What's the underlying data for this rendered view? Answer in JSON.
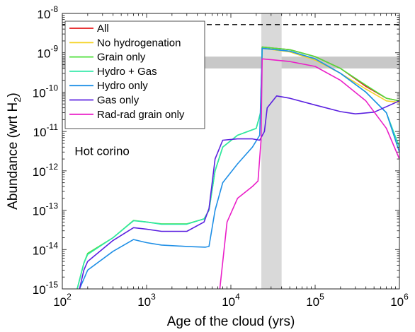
{
  "chart_data": {
    "type": "line",
    "title": "",
    "xlabel": "Age of the cloud (yrs)",
    "ylabel": {
      "main": "Abundance (wrt H",
      "sub": "2",
      "close": ")"
    },
    "xscale": "log",
    "yscale": "log",
    "xlim": [
      100,
      1000000
    ],
    "ylim": [
      1e-15,
      1e-08
    ],
    "grid": false,
    "legend_position": "top-left",
    "xticks": [
      {
        "value": 100,
        "base": "10",
        "exp": "2"
      },
      {
        "value": 1000,
        "base": "10",
        "exp": "3"
      },
      {
        "value": 10000,
        "base": "10",
        "exp": "4"
      },
      {
        "value": 100000,
        "base": "10",
        "exp": "5"
      },
      {
        "value": 1000000,
        "base": "10",
        "exp": "6"
      }
    ],
    "yticks": [
      {
        "value": 1e-15,
        "base": "10",
        "exp": "-15"
      },
      {
        "value": 1e-14,
        "base": "10",
        "exp": "-14"
      },
      {
        "value": 1e-13,
        "base": "10",
        "exp": "-13"
      },
      {
        "value": 1e-12,
        "base": "10",
        "exp": "-12"
      },
      {
        "value": 1e-11,
        "base": "10",
        "exp": "-11"
      },
      {
        "value": 1e-10,
        "base": "10",
        "exp": "-10"
      },
      {
        "value": 1e-09,
        "base": "10",
        "exp": "-9"
      },
      {
        "value": 1e-08,
        "base": "10",
        "exp": "-8"
      }
    ],
    "annotations": [
      {
        "text": "Hot corino",
        "x": 140,
        "y": 2.5e-12
      }
    ],
    "reference_line": {
      "y": 5.2e-09,
      "style": "dashed",
      "color": "#000000"
    },
    "shaded_regions": [
      {
        "orientation": "horizontal",
        "from": 4e-10,
        "to": 8e-10,
        "color": "#c8c8c8"
      },
      {
        "orientation": "vertical",
        "from": 23000,
        "to": 40000,
        "color": "#d9d9d9"
      }
    ],
    "series": [
      {
        "name": "All",
        "color": "#e41a1c",
        "points": [
          [
            22800,
            3e-11
          ],
          [
            23500,
            1.4e-09
          ],
          [
            50000,
            1.2e-09
          ],
          [
            100000,
            8e-10
          ],
          [
            200000,
            4e-10
          ],
          [
            400000,
            1.4e-10
          ],
          [
            700000,
            7e-11
          ],
          [
            1000000,
            6e-11
          ]
        ]
      },
      {
        "name": "No hydrogenation",
        "color": "#f5d327",
        "points": [
          [
            22800,
            3e-11
          ],
          [
            23500,
            1.3e-09
          ],
          [
            50000,
            1.05e-09
          ],
          [
            100000,
            6.5e-10
          ],
          [
            200000,
            3e-10
          ],
          [
            400000,
            1.2e-10
          ],
          [
            700000,
            6e-11
          ],
          [
            1000000,
            5.5e-11
          ]
        ]
      },
      {
        "name": "Grain only",
        "color": "#4fe03a",
        "points": [
          [
            150,
            1e-15
          ],
          [
            180,
            4.5e-15
          ],
          [
            200,
            8e-15
          ],
          [
            400,
            2e-14
          ],
          [
            700,
            5.5e-14
          ],
          [
            1000,
            5e-14
          ],
          [
            1500,
            4.5e-14
          ],
          [
            3000,
            4.5e-14
          ],
          [
            4800,
            6e-14
          ],
          [
            5500,
            1e-13
          ],
          [
            6500,
            1e-12
          ],
          [
            8000,
            4e-12
          ],
          [
            12000,
            8e-12
          ],
          [
            20000,
            1.2e-11
          ],
          [
            22500,
            3e-11
          ],
          [
            23500,
            1.4e-09
          ],
          [
            50000,
            1.2e-09
          ],
          [
            100000,
            8e-10
          ],
          [
            200000,
            4e-10
          ],
          [
            400000,
            1.5e-10
          ],
          [
            700000,
            7e-11
          ],
          [
            1000000,
            6e-11
          ]
        ]
      },
      {
        "name": "Hydro + Gas",
        "color": "#2ee8a6",
        "points": [
          [
            150,
            1e-15
          ],
          [
            180,
            4.5e-15
          ],
          [
            200,
            7.5e-15
          ],
          [
            400,
            2e-14
          ],
          [
            700,
            5.4e-14
          ],
          [
            1000,
            5e-14
          ],
          [
            1500,
            4.4e-14
          ],
          [
            3000,
            4.4e-14
          ],
          [
            4800,
            6e-14
          ],
          [
            5500,
            1e-13
          ],
          [
            6500,
            1e-12
          ],
          [
            8000,
            4e-12
          ],
          [
            12000,
            8e-12
          ],
          [
            20000,
            1.2e-11
          ],
          [
            22500,
            3e-11
          ],
          [
            23500,
            1.3e-09
          ],
          [
            50000,
            1.1e-09
          ],
          [
            100000,
            7e-10
          ],
          [
            200000,
            3e-10
          ],
          [
            400000,
            1e-10
          ],
          [
            700000,
            3e-11
          ],
          [
            1000000,
            4e-12
          ]
        ]
      },
      {
        "name": "Hydro only",
        "color": "#1f8fe6",
        "points": [
          [
            160,
            1e-15
          ],
          [
            200,
            3e-15
          ],
          [
            400,
            9e-15
          ],
          [
            700,
            1.8e-14
          ],
          [
            1000,
            1.5e-14
          ],
          [
            1500,
            1.3e-14
          ],
          [
            3000,
            1.2e-14
          ],
          [
            5000,
            1.15e-14
          ],
          [
            5500,
            1.2e-14
          ],
          [
            6500,
            1e-13
          ],
          [
            8000,
            5e-13
          ],
          [
            12000,
            1.5e-12
          ],
          [
            18000,
            4e-12
          ],
          [
            22000,
            8e-12
          ],
          [
            23500,
            1.3e-09
          ],
          [
            50000,
            1.1e-09
          ],
          [
            100000,
            7e-10
          ],
          [
            200000,
            3e-10
          ],
          [
            400000,
            1e-10
          ],
          [
            700000,
            3e-11
          ],
          [
            1000000,
            3e-12
          ]
        ]
      },
      {
        "name": "Gas only",
        "color": "#5b21e0",
        "points": [
          [
            160,
            1e-15
          ],
          [
            180,
            3e-15
          ],
          [
            200,
            5e-15
          ],
          [
            400,
            1.7e-14
          ],
          [
            700,
            3.6e-14
          ],
          [
            1000,
            3.3e-14
          ],
          [
            1500,
            2.9e-14
          ],
          [
            3000,
            2.9e-14
          ],
          [
            4800,
            5e-14
          ],
          [
            5500,
            1.1e-13
          ],
          [
            6500,
            2e-12
          ],
          [
            8000,
            6e-12
          ],
          [
            12000,
            6.5e-12
          ],
          [
            18000,
            6.5e-12
          ],
          [
            22000,
            6e-12
          ],
          [
            25000,
            1e-11
          ],
          [
            27000,
            4e-11
          ],
          [
            35000,
            8e-11
          ],
          [
            50000,
            7e-11
          ],
          [
            100000,
            4.7e-11
          ],
          [
            200000,
            3.2e-11
          ],
          [
            300000,
            2.8e-11
          ],
          [
            500000,
            3.1e-11
          ],
          [
            1000000,
            6e-11
          ]
        ]
      },
      {
        "name": "Rad-rad grain only",
        "color": "#ea1ec8",
        "points": [
          [
            7400,
            1e-15
          ],
          [
            9000,
            5e-14
          ],
          [
            12000,
            2e-13
          ],
          [
            18000,
            4e-13
          ],
          [
            21000,
            5.5e-13
          ],
          [
            22800,
            6e-12
          ],
          [
            23500,
            7e-10
          ],
          [
            50000,
            6e-10
          ],
          [
            100000,
            4.5e-10
          ],
          [
            200000,
            2e-10
          ],
          [
            400000,
            6e-11
          ],
          [
            700000,
            1.2e-11
          ],
          [
            1000000,
            2e-12
          ]
        ]
      }
    ]
  }
}
